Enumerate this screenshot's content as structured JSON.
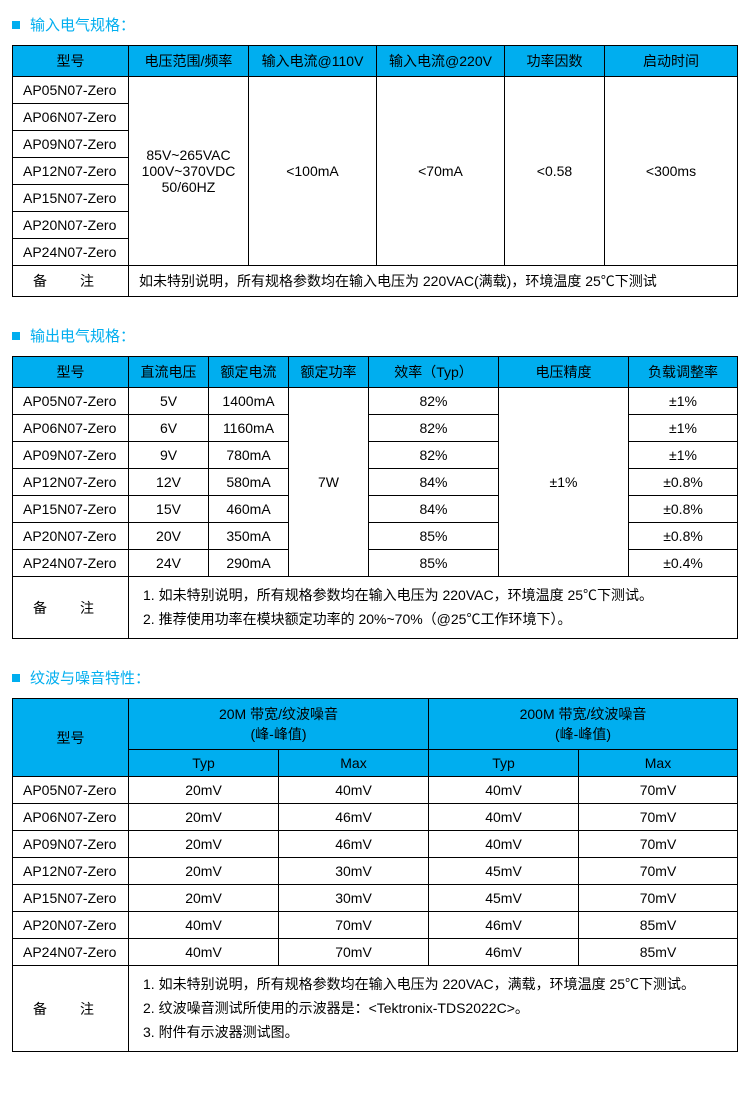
{
  "colors": {
    "accent": "#00aeef",
    "border": "#000000",
    "text": "#000000"
  },
  "section1": {
    "title": "输入电气规格：",
    "headers": [
      "型号",
      "电压范围/频率",
      "输入电流@110V",
      "输入电流@220V",
      "功率因数",
      "启动时间"
    ],
    "models": [
      "AP05N07-Zero",
      "AP06N07-Zero",
      "AP09N07-Zero",
      "AP12N07-Zero",
      "AP15N07-Zero",
      "AP20N07-Zero",
      "AP24N07-Zero"
    ],
    "voltage_lines": [
      "85V~265VAC",
      "100V~370VDC",
      "50/60HZ"
    ],
    "current110": "<100mA",
    "current220": "<70mA",
    "pf": "<0.58",
    "startup": "<300ms",
    "note_label": "备注",
    "note": "如未特别说明，所有规格参数均在输入电压为 220VAC(满载)，环境温度 25℃下测试"
  },
  "section2": {
    "title": "输出电气规格：",
    "headers": [
      "型号",
      "直流电压",
      "额定电流",
      "额定功率",
      "效率（Typ）",
      "电压精度",
      "负载调整率"
    ],
    "rows": [
      {
        "m": "AP05N07-Zero",
        "v": "5V",
        "i": "1400mA",
        "eff": "82%",
        "lr": "±1%"
      },
      {
        "m": "AP06N07-Zero",
        "v": "6V",
        "i": "1160mA",
        "eff": "82%",
        "lr": "±1%"
      },
      {
        "m": "AP09N07-Zero",
        "v": "9V",
        "i": "780mA",
        "eff": "82%",
        "lr": "±1%"
      },
      {
        "m": "AP12N07-Zero",
        "v": "12V",
        "i": "580mA",
        "eff": "84%",
        "lr": "±0.8%"
      },
      {
        "m": "AP15N07-Zero",
        "v": "15V",
        "i": "460mA",
        "eff": "84%",
        "lr": "±0.8%"
      },
      {
        "m": "AP20N07-Zero",
        "v": "20V",
        "i": "350mA",
        "eff": "85%",
        "lr": "±0.8%"
      },
      {
        "m": "AP24N07-Zero",
        "v": "24V",
        "i": "290mA",
        "eff": "85%",
        "lr": "±0.4%"
      }
    ],
    "rated_power": "7W",
    "vprecision": "±1%",
    "note_label": "备注",
    "notes": [
      "如未特别说明，所有规格参数均在输入电压为 220VAC，环境温度 25℃下测试。",
      "推荐使用功率在模块额定功率的 20%~70%（@25℃工作环境下）。"
    ]
  },
  "section3": {
    "title": "纹波与噪音特性：",
    "h_model": "型号",
    "h_20m": "20M 带宽/纹波噪音",
    "h_200m": "200M 带宽/纹波噪音",
    "h_peak": "(峰-峰值)",
    "h_typ": "Typ",
    "h_max": "Max",
    "rows": [
      {
        "m": "AP05N07-Zero",
        "t20": "20mV",
        "m20": "40mV",
        "t200": "40mV",
        "m200": "70mV"
      },
      {
        "m": "AP06N07-Zero",
        "t20": "20mV",
        "m20": "46mV",
        "t200": "40mV",
        "m200": "70mV"
      },
      {
        "m": "AP09N07-Zero",
        "t20": "20mV",
        "m20": "46mV",
        "t200": "40mV",
        "m200": "70mV"
      },
      {
        "m": "AP12N07-Zero",
        "t20": "20mV",
        "m20": "30mV",
        "t200": "45mV",
        "m200": "70mV"
      },
      {
        "m": "AP15N07-Zero",
        "t20": "20mV",
        "m20": "30mV",
        "t200": "45mV",
        "m200": "70mV"
      },
      {
        "m": "AP20N07-Zero",
        "t20": "40mV",
        "m20": "70mV",
        "t200": "46mV",
        "m200": "85mV"
      },
      {
        "m": "AP24N07-Zero",
        "t20": "40mV",
        "m20": "70mV",
        "t200": "46mV",
        "m200": "85mV"
      }
    ],
    "note_label": "备注",
    "notes": [
      "如未特别说明，所有规格参数均在输入电压为 220VAC，满载，环境温度 25℃下测试。",
      "纹波噪音测试所使用的示波器是：<Tektronix-TDS2022C>。",
      "附件有示波器测试图。"
    ]
  }
}
